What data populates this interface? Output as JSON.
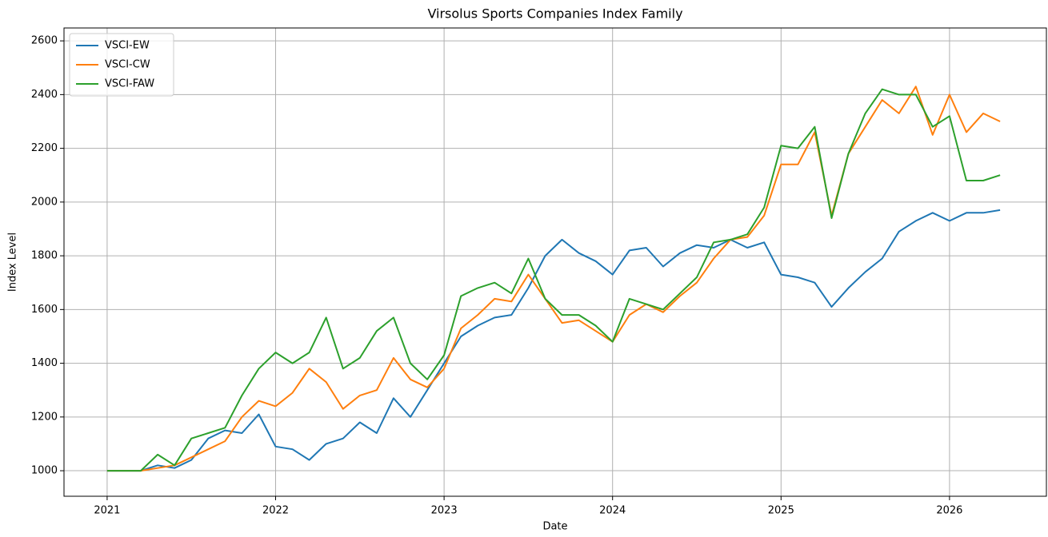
{
  "chart_data": {
    "type": "line",
    "title": "Virsolus Sports Companies Index Family",
    "xlabel": "Date",
    "ylabel": "Index Level",
    "x": [
      2021.0,
      2021.1,
      2021.2,
      2021.3,
      2021.4,
      2021.5,
      2021.6,
      2021.7,
      2021.8,
      2021.9,
      2022.0,
      2022.1,
      2022.2,
      2022.3,
      2022.4,
      2022.5,
      2022.6,
      2022.7,
      2022.8,
      2022.9,
      2023.0,
      2023.1,
      2023.2,
      2023.3,
      2023.4,
      2023.5,
      2023.6,
      2023.7,
      2023.8,
      2023.9,
      2024.0,
      2024.1,
      2024.2,
      2024.3,
      2024.4,
      2024.5,
      2024.6,
      2024.7,
      2024.8,
      2024.9,
      2025.0,
      2025.1,
      2025.2,
      2025.3,
      2025.4,
      2025.5,
      2025.6,
      2025.7,
      2025.8,
      2025.9,
      2026.0,
      2026.1,
      2026.2,
      2026.3
    ],
    "series": [
      {
        "name": "VSCI-EW",
        "color": "#1f77b4",
        "values": [
          1000,
          1000,
          1000,
          1020,
          1010,
          1040,
          1120,
          1150,
          1140,
          1210,
          1090,
          1080,
          1040,
          1100,
          1120,
          1180,
          1140,
          1270,
          1200,
          1300,
          1400,
          1500,
          1540,
          1570,
          1580,
          1680,
          1800,
          1860,
          1810,
          1780,
          1730,
          1820,
          1830,
          1760,
          1810,
          1840,
          1830,
          1860,
          1830,
          1850,
          1730,
          1720,
          1700,
          1610,
          1680,
          1740,
          1790,
          1890,
          1930,
          1960,
          1930,
          1960,
          1960,
          1970
        ]
      },
      {
        "name": "VSCI-CW",
        "color": "#ff7f0e",
        "values": [
          1000,
          1000,
          1000,
          1010,
          1020,
          1050,
          1080,
          1110,
          1200,
          1260,
          1240,
          1290,
          1380,
          1330,
          1230,
          1280,
          1300,
          1420,
          1340,
          1310,
          1380,
          1530,
          1580,
          1640,
          1630,
          1730,
          1640,
          1550,
          1560,
          1520,
          1480,
          1580,
          1620,
          1590,
          1650,
          1700,
          1790,
          1860,
          1870,
          1950,
          2140,
          2140,
          2260,
          1950,
          2180,
          2280,
          2380,
          2330,
          2430,
          2250,
          2400,
          2260,
          2330,
          2300
        ]
      },
      {
        "name": "VSCI-FAW",
        "color": "#2ca02c",
        "values": [
          1000,
          1000,
          1000,
          1060,
          1020,
          1120,
          1140,
          1160,
          1280,
          1380,
          1440,
          1400,
          1440,
          1570,
          1380,
          1420,
          1520,
          1570,
          1400,
          1340,
          1430,
          1650,
          1680,
          1700,
          1660,
          1790,
          1640,
          1580,
          1580,
          1540,
          1480,
          1640,
          1620,
          1600,
          1660,
          1720,
          1850,
          1860,
          1880,
          1980,
          2210,
          2200,
          2280,
          1940,
          2180,
          2330,
          2420,
          2400,
          2400,
          2280,
          2320,
          2080,
          2080,
          2100
        ]
      }
    ],
    "xlim": [
      2020.744,
      2026.575
    ],
    "xticks": [
      2021,
      2022,
      2023,
      2024,
      2025,
      2026
    ],
    "ylim": [
      905,
      2648
    ],
    "yticks": [
      1000,
      1200,
      1400,
      1600,
      1800,
      2000,
      2200,
      2400,
      2600
    ],
    "grid": true,
    "legend": "upper-left"
  }
}
